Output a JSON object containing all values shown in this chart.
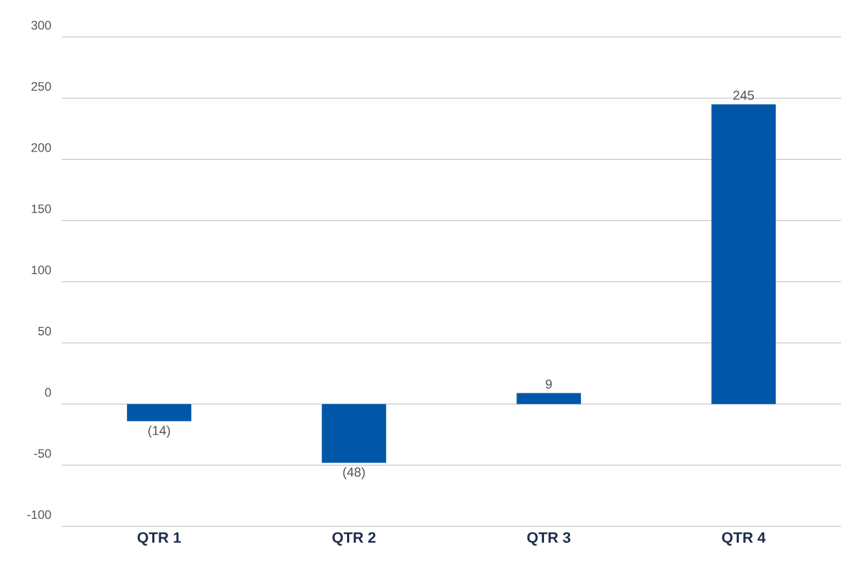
{
  "chart_data": {
    "type": "bar",
    "categories": [
      "QTR 1",
      "QTR 2",
      "QTR 3",
      "QTR 4"
    ],
    "values": [
      -14,
      -48,
      9,
      245
    ],
    "value_labels": [
      "(14)",
      "(48)",
      "9",
      "245"
    ],
    "color": "#0057a8",
    "ylim": [
      -100,
      300
    ],
    "yticks": [
      -100,
      -50,
      0,
      50,
      100,
      150,
      200,
      250,
      300
    ],
    "grid": "y"
  }
}
